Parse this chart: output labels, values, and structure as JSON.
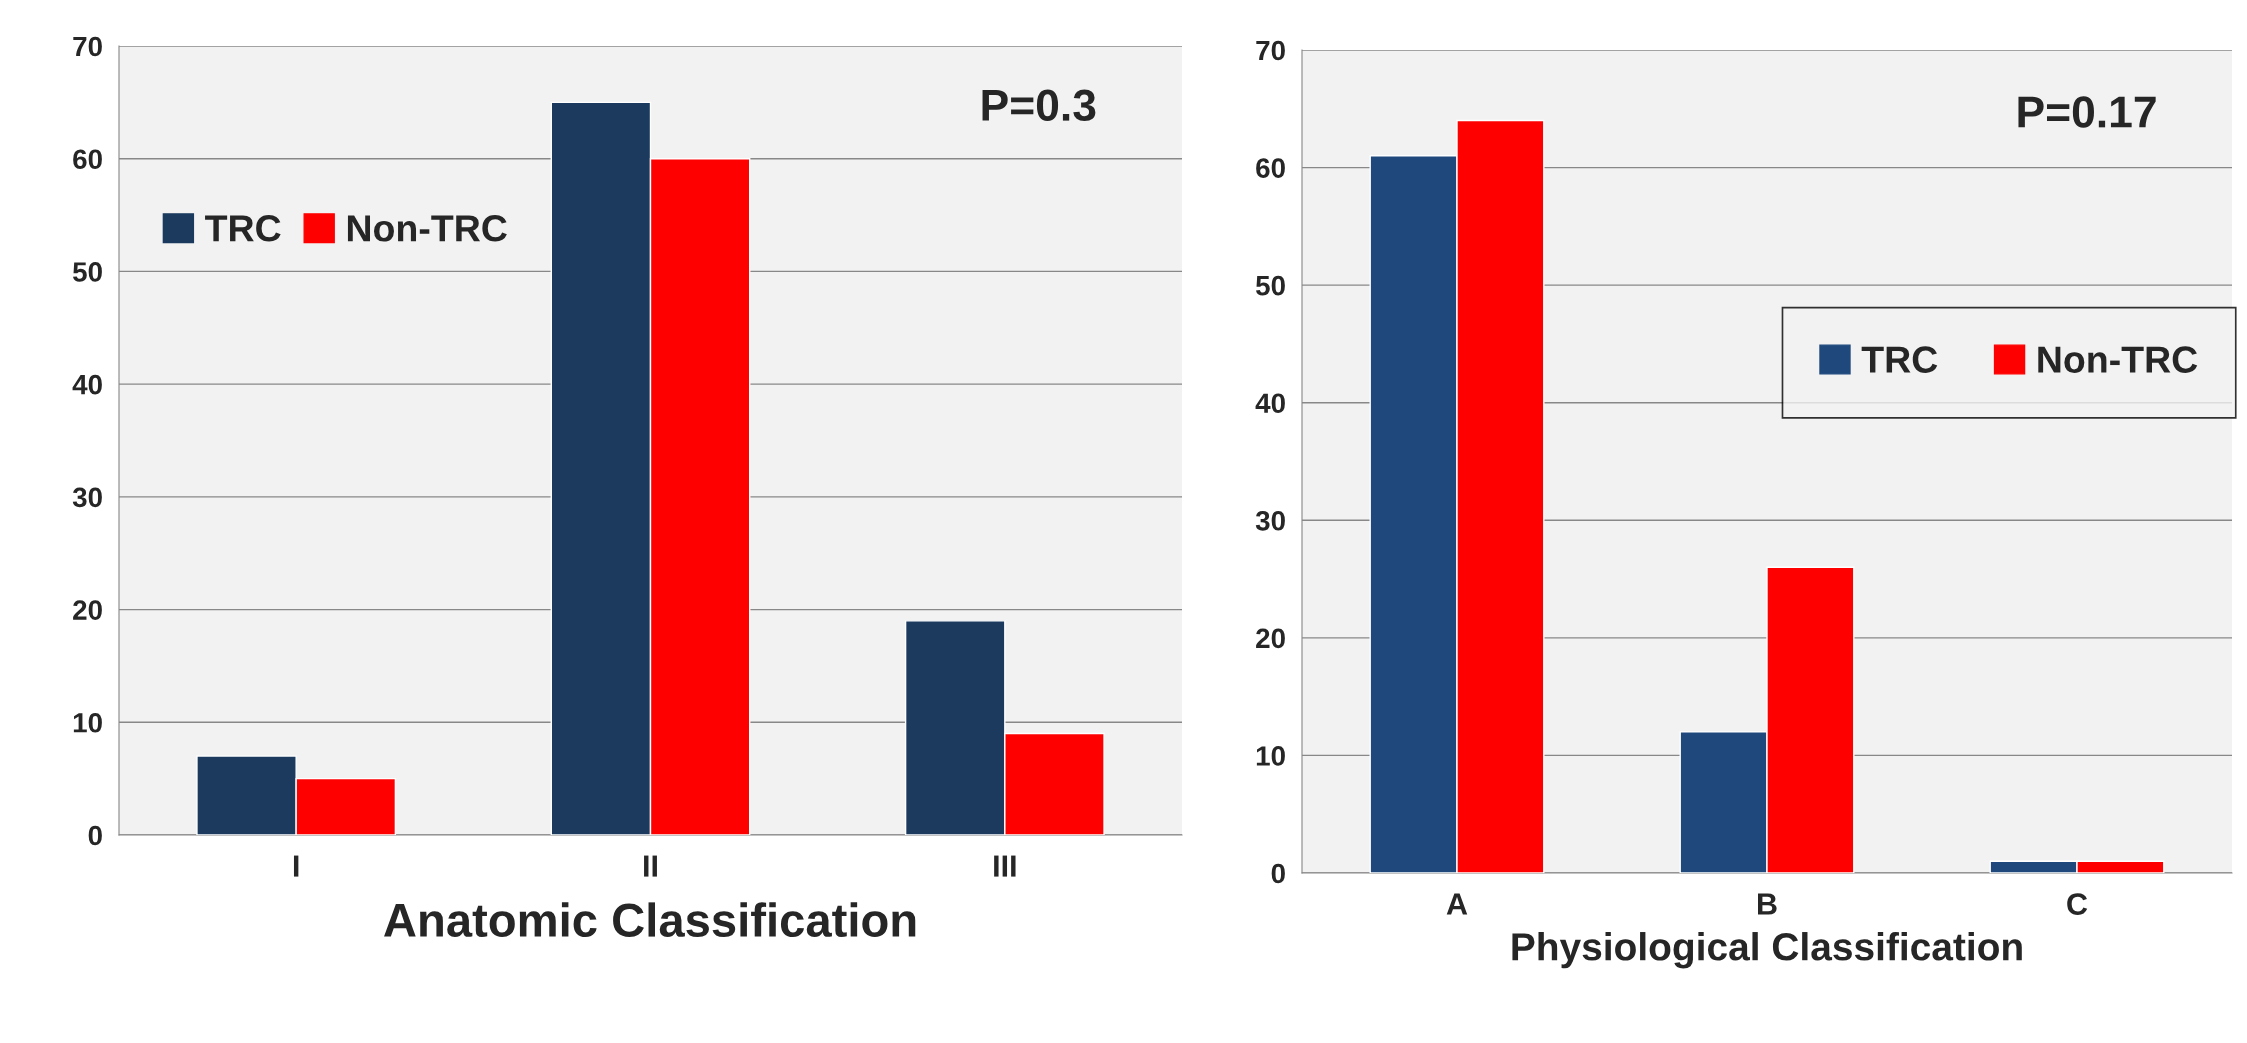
{
  "chart_data": [
    {
      "type": "bar",
      "xlabel": "Anatomic Classification",
      "categories": [
        "I",
        "II",
        "III"
      ],
      "ylim": [
        0,
        70
      ],
      "yticks": [
        0,
        10,
        20,
        30,
        40,
        50,
        60,
        70
      ],
      "grid": "y",
      "legend": "top left",
      "annotations": [
        "P=0.3"
      ],
      "series": [
        {
          "name": "TRC",
          "color": "#1b3a5e",
          "values": [
            7,
            65,
            19
          ]
        },
        {
          "name": "Non-TRC",
          "color": "#ff0000",
          "values": [
            5,
            60,
            9
          ]
        }
      ]
    },
    {
      "type": "bar",
      "xlabel": "Physiological Classification",
      "categories": [
        "A",
        "B",
        "C"
      ],
      "ylim": [
        0,
        70
      ],
      "yticks": [
        0,
        10,
        20,
        30,
        40,
        50,
        60,
        70
      ],
      "grid": "y",
      "legend": "right",
      "annotations": [
        "P=0.17"
      ],
      "series": [
        {
          "name": "TRC",
          "color": "#1f497d",
          "values": [
            61,
            12,
            1
          ]
        },
        {
          "name": "Non-TRC",
          "color": "#ff0000",
          "values": [
            64,
            26,
            1
          ]
        }
      ]
    }
  ]
}
